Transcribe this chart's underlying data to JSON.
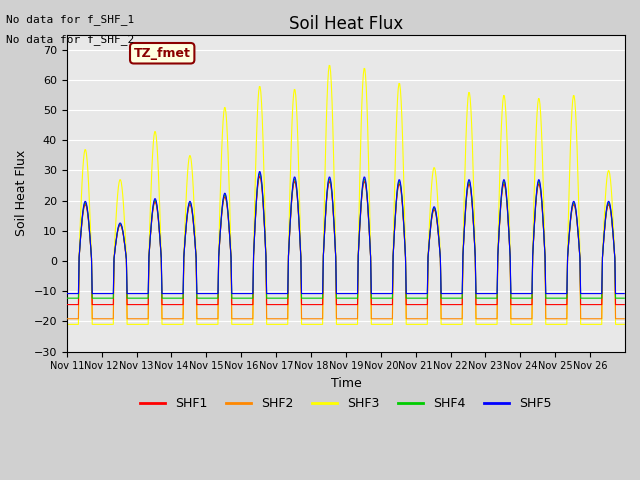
{
  "title": "Soil Heat Flux",
  "ylabel": "Soil Heat Flux",
  "xlabel": "Time",
  "annotation_line1": "No data for f_SHF_1",
  "annotation_line2": "No data for f_SHF_2",
  "box_label": "TZ_fmet",
  "ylim": [
    -30,
    75
  ],
  "yticks": [
    -30,
    -20,
    -10,
    0,
    10,
    20,
    30,
    40,
    50,
    60,
    70
  ],
  "xtick_labels": [
    "Nov 11",
    "Nov 12",
    "Nov 13",
    "Nov 14",
    "Nov 15",
    "Nov 16",
    "Nov 17",
    "Nov 18",
    "Nov 19",
    "Nov 20",
    "Nov 21",
    "Nov 22",
    "Nov 23",
    "Nov 24",
    "Nov 25",
    "Nov 26"
  ],
  "legend_labels": [
    "SHF1",
    "SHF2",
    "SHF3",
    "SHF4",
    "SHF5"
  ],
  "legend_colors": [
    "#ff0000",
    "#ff8800",
    "#ffff00",
    "#00cc00",
    "#0000ff"
  ],
  "bg_color": "#e8e8e8",
  "grid_color": "#ffffff",
  "num_days": 16,
  "points_per_day": 48,
  "shf3_peaks": [
    37,
    27,
    43,
    35,
    51,
    58,
    57,
    65,
    64,
    59,
    31,
    56,
    55,
    54,
    55,
    30
  ],
  "shf_other_peaks": [
    22,
    14,
    23,
    22,
    25,
    33,
    31,
    31,
    31,
    30,
    20,
    30,
    30,
    30,
    22,
    22
  ]
}
